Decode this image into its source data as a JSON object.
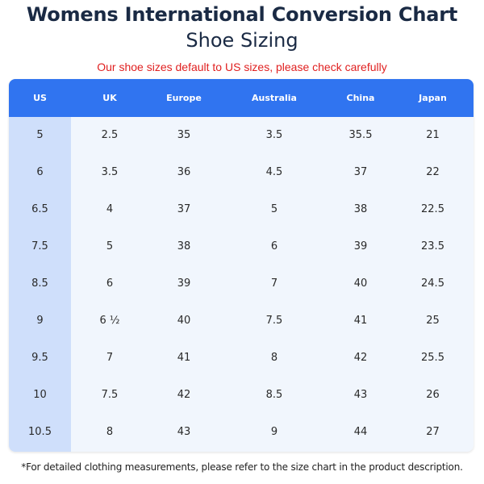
{
  "header": {
    "title": "Womens International Conversion Chart",
    "subtitle": "Shoe Sizing",
    "notice": "Our shoe sizes default to US sizes, please check carefully"
  },
  "table": {
    "columns": [
      "US",
      "UK",
      "Europe",
      "Australia",
      "China",
      "Japan"
    ],
    "rows": [
      [
        "5",
        "2.5",
        "35",
        "3.5",
        "35.5",
        "21"
      ],
      [
        "6",
        "3.5",
        "36",
        "4.5",
        "37",
        "22"
      ],
      [
        "6.5",
        "4",
        "37",
        "5",
        "38",
        "22.5"
      ],
      [
        "7.5",
        "5",
        "38",
        "6",
        "39",
        "23.5"
      ],
      [
        "8.5",
        "6",
        "39",
        "7",
        "40",
        "24.5"
      ],
      [
        "9",
        "6 ½",
        "40",
        "7.5",
        "41",
        "25"
      ],
      [
        "9.5",
        "7",
        "41",
        "8",
        "42",
        "25.5"
      ],
      [
        "10",
        "7.5",
        "42",
        "8.5",
        "43",
        "26"
      ],
      [
        "10.5",
        "8",
        "43",
        "9",
        "44",
        "27"
      ]
    ]
  },
  "footer": {
    "note": "*For detailed clothing measurements, please refer to the size chart in the product description."
  },
  "colors": {
    "header_bg": "#3074f0",
    "us_column_bg": "#cfdffb",
    "table_bg": "#f1f6fd",
    "notice_text": "#e02020",
    "title_text": "#1a2a44"
  }
}
